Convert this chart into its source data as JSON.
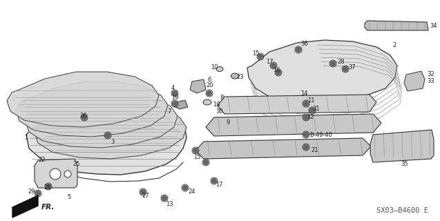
{
  "background_color": "#ffffff",
  "diagram_code": "SX03–B4600 E",
  "figsize": [
    6.37,
    3.2
  ],
  "dpi": 100,
  "text_color": "#222222",
  "line_color": "#333333",
  "fill_color": "#d8d8d8",
  "label_fontsize": 6.0,
  "diagram_code_fontsize": 7.5
}
